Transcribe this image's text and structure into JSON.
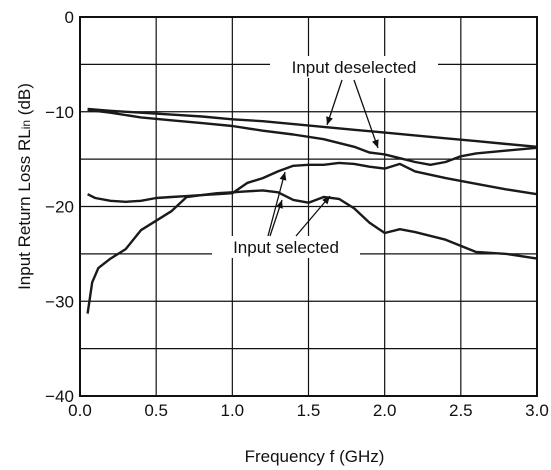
{
  "chart_data": {
    "type": "line",
    "title": "",
    "xlabel": "Frequency  f (GHz)",
    "ylabel_main": "Input Return Loss  RL",
    "ylabel_sub": "in",
    "ylabel_unit": " (dB)",
    "xlim": [
      0.0,
      3.0
    ],
    "ylim": [
      -40,
      0
    ],
    "xticks": [
      "0.0",
      "0.5",
      "1.0",
      "1.5",
      "2.0",
      "2.5",
      "3.0"
    ],
    "yticks": [
      "0",
      "-10",
      "-20",
      "-30",
      "-40"
    ],
    "grid": true,
    "series": [
      {
        "x": [
          0.05,
          0.2,
          0.4,
          0.6,
          0.8,
          1.0,
          1.2,
          1.4,
          1.6,
          1.8,
          2.0,
          2.2,
          2.4,
          2.6,
          2.8,
          3.0
        ],
        "values": [
          -9.7,
          -9.9,
          -10.1,
          -10.3,
          -10.5,
          -10.8,
          -11.0,
          -11.3,
          -11.6,
          -11.9,
          -12.2,
          -12.5,
          -12.8,
          -13.1,
          -13.4,
          -13.7
        ]
      },
      {
        "x": [
          0.05,
          0.2,
          0.4,
          0.6,
          0.8,
          1.0,
          1.2,
          1.4,
          1.6,
          1.8,
          1.9,
          2.0,
          2.1,
          2.2,
          2.3,
          2.4,
          2.5,
          2.6,
          2.8,
          3.0
        ],
        "values": [
          -9.8,
          -10.1,
          -10.6,
          -10.9,
          -11.2,
          -11.5,
          -12.0,
          -12.4,
          -12.9,
          -13.7,
          -14.3,
          -14.5,
          -14.9,
          -15.3,
          -15.6,
          -15.3,
          -14.7,
          -14.4,
          -14.1,
          -13.8
        ]
      },
      {
        "x": [
          0.05,
          0.1,
          0.2,
          0.3,
          0.4,
          0.5,
          0.6,
          0.7,
          0.8,
          0.9,
          1.0,
          1.1,
          1.2,
          1.3,
          1.4,
          1.5,
          1.6,
          1.7,
          1.8,
          1.9,
          2.0,
          2.1,
          2.2,
          2.4,
          2.6,
          2.8,
          3.0
        ],
        "values": [
          -18.7,
          -19.1,
          -19.4,
          -19.5,
          -19.4,
          -19.1,
          -19.0,
          -18.9,
          -18.8,
          -18.6,
          -18.5,
          -18.4,
          -18.3,
          -18.5,
          -19.3,
          -19.6,
          -19.0,
          -19.2,
          -20.2,
          -21.7,
          -22.8,
          -22.4,
          -22.7,
          -23.5,
          -24.8,
          -25.0,
          -25.5
        ]
      },
      {
        "x": [
          0.05,
          0.08,
          0.12,
          0.2,
          0.3,
          0.4,
          0.5,
          0.6,
          0.7,
          0.8,
          0.9,
          1.0,
          1.1,
          1.2,
          1.3,
          1.4,
          1.5,
          1.6,
          1.7,
          1.8,
          1.9,
          2.0,
          2.1,
          2.2,
          2.4,
          2.6,
          2.8,
          3.0
        ],
        "values": [
          -31.3,
          -28.0,
          -26.5,
          -25.5,
          -24.5,
          -22.5,
          -21.5,
          -20.5,
          -19.0,
          -18.8,
          -18.7,
          -18.6,
          -17.5,
          -17.0,
          -16.3,
          -15.7,
          -15.6,
          -15.6,
          -15.4,
          -15.5,
          -15.8,
          -16.0,
          -15.5,
          -16.3,
          -17.0,
          -17.6,
          -18.2,
          -18.7
        ]
      }
    ],
    "annotations": {
      "deselected_label": "Input deselected",
      "selected_label": "Input selected"
    }
  }
}
